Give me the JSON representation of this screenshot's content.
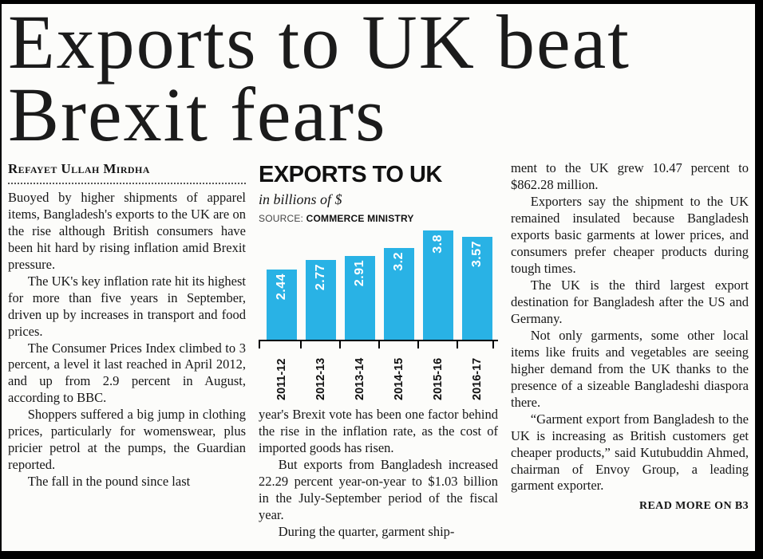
{
  "page": {
    "headline_line1": "Exports to UK beat",
    "headline_line2": "Brexit fears",
    "byline": "Refayet Ullah Mirdha"
  },
  "col1": {
    "paragraphs": [
      "Buoyed by higher shipments of apparel items, Bangladesh's exports to the UK are on the rise although British consumers have been hit hard by rising inflation amid Brexit pressure.",
      "The UK's key inflation rate hit its highest for more than five years in September, driven up by increases in transport and food prices.",
      "The Consumer Prices Index climbed to 3 percent, a level it last reached in April 2012, and up from 2.9 percent in August, according to BBC.",
      "Shoppers suffered a big jump in clothing prices, particularly for womenswear, plus pricier petrol at the pumps, the Guardian reported.",
      "The fall in the pound since last"
    ]
  },
  "col2": {
    "paragraphs": [
      "year's Brexit vote has been one factor behind the rise in the inflation rate, as the cost of imported goods has risen.",
      "But exports from Bangladesh increased 22.29 percent year-on-year to $1.03 billion in the July-September period of the fiscal year.",
      "During the quarter, garment ship-"
    ]
  },
  "col3": {
    "paragraphs": [
      "ment to the UK grew 10.47 percent to $862.28 million.",
      "Exporters say the shipment to the UK remained insulated because Bangladesh exports basic garments at lower prices, and consumers prefer cheaper products during tough times.",
      "The UK is the third largest export destination for Bangladesh after the US and Germany.",
      "Not only garments, some other local items like fruits and vegetables are seeing higher demand from the UK thanks to the presence of a sizeable Bangladeshi diaspora there.",
      "“Garment export from Bangladesh to the UK is increasing as British customers get cheaper products,” said Kutubuddin Ahmed, chairman of Envoy Group, a leading garment exporter."
    ],
    "read_more": "READ MORE ON B3"
  },
  "chart": {
    "title": "EXPORTS TO UK",
    "subtitle": "in billions of $",
    "source_label": "SOURCE:",
    "source_value": "COMMERCE MINISTRY",
    "bar_color": "#29b2e5"
  },
  "chart_data": {
    "type": "bar",
    "categories": [
      "2011-12",
      "2012-13",
      "2013-14",
      "2014-15",
      "2015-16",
      "2016-17"
    ],
    "values": [
      2.44,
      2.77,
      2.91,
      3.2,
      3.8,
      3.57
    ],
    "title": "EXPORTS TO UK",
    "xlabel": "",
    "ylabel": "in billions of $",
    "ylim": [
      0,
      4
    ],
    "grid": false,
    "legend": "none",
    "source": "COMMERCE MINISTRY"
  }
}
